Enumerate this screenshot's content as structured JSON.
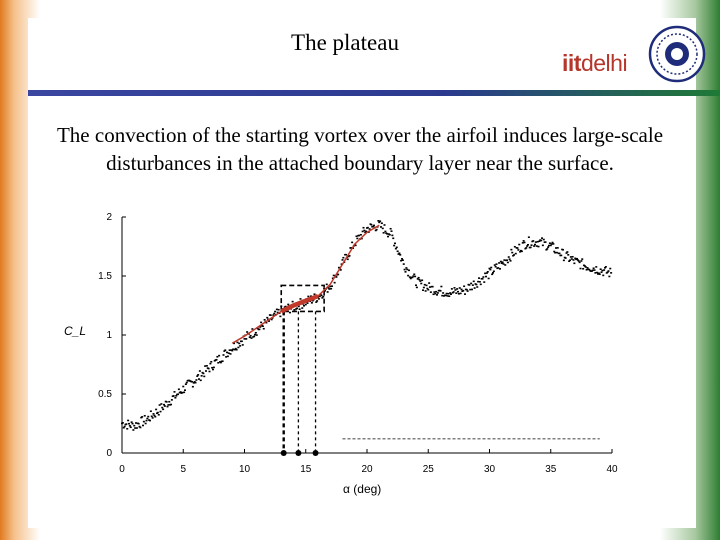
{
  "slide": {
    "title": "The plateau",
    "body": "The convection of the starting vortex over the airfoil induces large-scale disturbances in the attached boundary layer near the surface.",
    "logo_iit": "iit",
    "logo_delhi": "delhi"
  },
  "colors": {
    "accent_orange": "#e07a1f",
    "accent_green": "#2e7d32",
    "rule_blue": "#2b3a8f",
    "logo_red": "#b5362b",
    "fit_red": "#c0392b"
  },
  "chart_data": {
    "type": "scatter",
    "xlabel": "α (deg)",
    "ylabel": "C_L",
    "xlim": [
      0,
      40
    ],
    "ylim": [
      0,
      2
    ],
    "xticks": [
      "0",
      "5",
      "10",
      "15",
      "20",
      "25",
      "30",
      "35",
      "40"
    ],
    "yticks": [
      "0",
      "0.5",
      "1",
      "1.5",
      "2"
    ],
    "series": [
      {
        "x": [
          0,
          1,
          2,
          3,
          4,
          5,
          6,
          7,
          8,
          9,
          10,
          11,
          12,
          13,
          14,
          15,
          16,
          17,
          18,
          19,
          20,
          21,
          22,
          23,
          24,
          25,
          26,
          27,
          28,
          29,
          30,
          31,
          32,
          33,
          34,
          35,
          36,
          37,
          38,
          39,
          40
        ],
        "y": [
          0.25,
          0.23,
          0.28,
          0.36,
          0.45,
          0.54,
          0.62,
          0.71,
          0.8,
          0.89,
          0.97,
          1.04,
          1.12,
          1.2,
          1.24,
          1.28,
          1.32,
          1.42,
          1.6,
          1.78,
          1.9,
          1.93,
          1.85,
          1.6,
          1.45,
          1.4,
          1.37,
          1.36,
          1.38,
          1.45,
          1.52,
          1.6,
          1.7,
          1.78,
          1.79,
          1.75,
          1.68,
          1.62,
          1.58,
          1.55,
          1.52
        ]
      }
    ],
    "fit_line": {
      "x": [
        9,
        10,
        11,
        12,
        13,
        14,
        15,
        16,
        17,
        18,
        19,
        20,
        21
      ],
      "y": [
        0.93,
        0.99,
        1.06,
        1.13,
        1.2,
        1.25,
        1.29,
        1.33,
        1.43,
        1.6,
        1.77,
        1.87,
        1.93
      ]
    },
    "plateau_box": {
      "x": [
        13,
        16.5
      ],
      "y": [
        1.2,
        1.42
      ]
    },
    "marker_points": {
      "x": [
        13.2,
        14.4,
        15.8
      ],
      "y": [
        0,
        0,
        0
      ]
    },
    "reference_line": {
      "x": [
        18,
        39
      ],
      "y": 0.12
    }
  }
}
